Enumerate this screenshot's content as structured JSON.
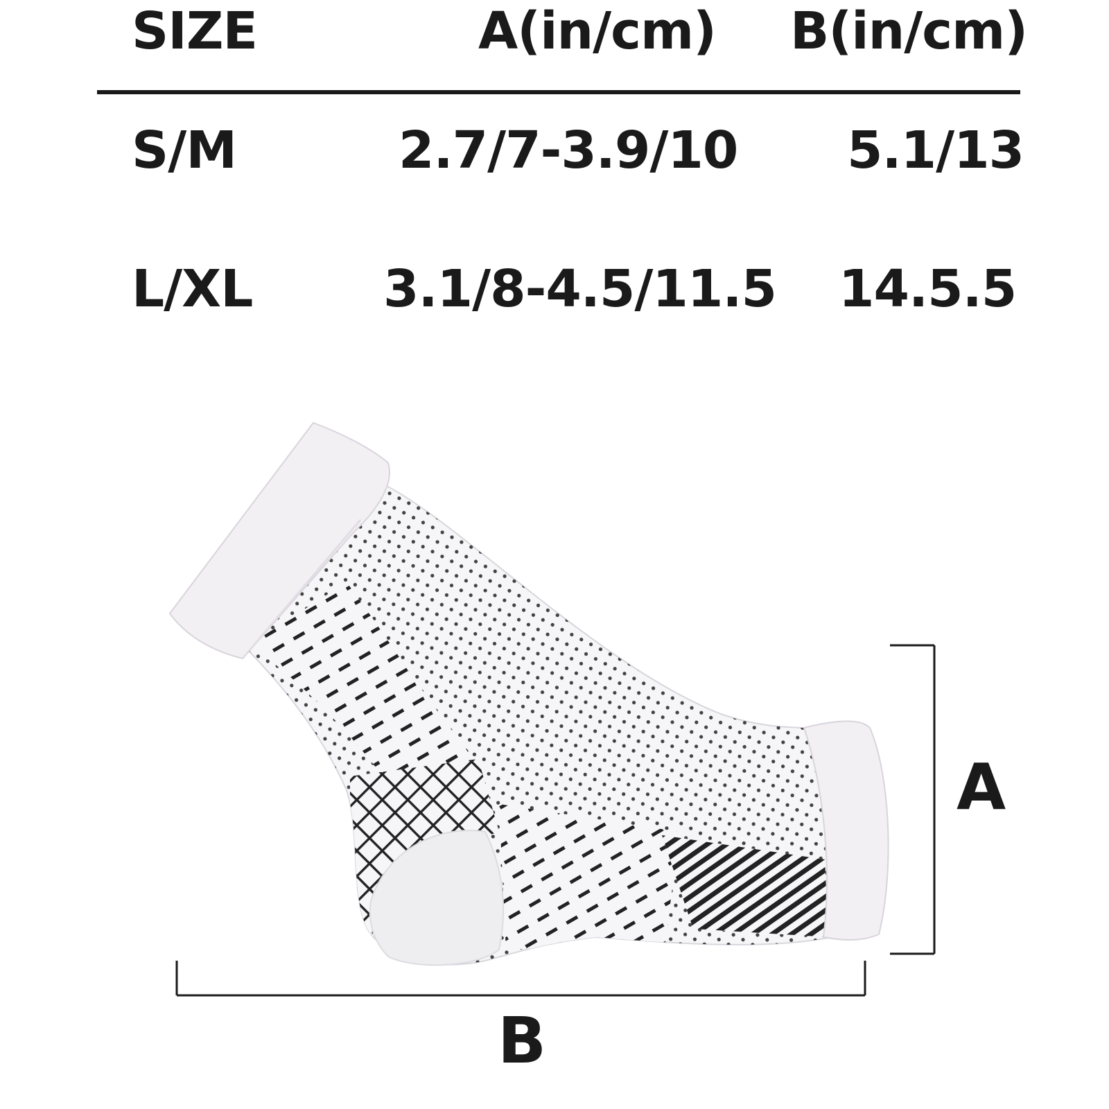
{
  "size_chart": {
    "headers": {
      "size": "SIZE",
      "a": "A(in/cm)",
      "b": "B(in/cm)"
    },
    "rows": [
      {
        "size": "S/M",
        "a": "2.7/7-3.9/10",
        "b": "5.1/13"
      },
      {
        "size": "L/XL",
        "a": "3.1/8-4.5/11.5",
        "b": "14.5.5"
      }
    ]
  },
  "diagram": {
    "dimension_a_label": "A",
    "dimension_b_label": "B",
    "product_icon": "ankle-compression-sleeve",
    "colors": {
      "fabric": "#f6f6f8",
      "cuff": "#f3f0f4",
      "pattern": "#222222",
      "bracket": "#1a1a1a"
    }
  }
}
